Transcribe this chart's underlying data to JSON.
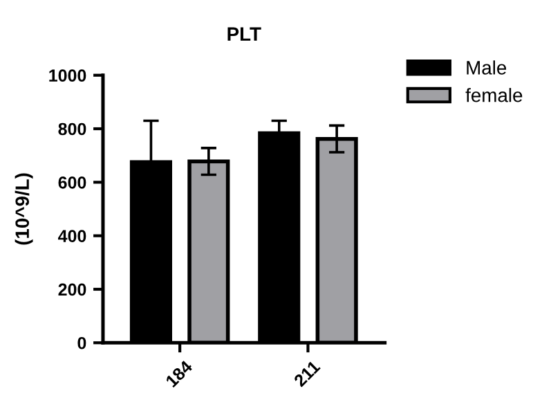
{
  "chart_data": {
    "type": "bar",
    "title": "PLT",
    "ylabel": "(10^9/L)",
    "categories": [
      "184",
      "211"
    ],
    "series": [
      {
        "name": "Male",
        "color": "#000000",
        "values": [
          675,
          783
        ],
        "errors": [
          155,
          47
        ]
      },
      {
        "name": "female",
        "color": "#a0a0a4",
        "values": [
          678,
          762
        ],
        "errors": [
          50,
          50
        ]
      }
    ],
    "ylim": [
      0,
      1000
    ],
    "yticks": [
      0,
      200,
      400,
      600,
      800,
      1000
    ],
    "grid": false,
    "legend": "top right"
  }
}
